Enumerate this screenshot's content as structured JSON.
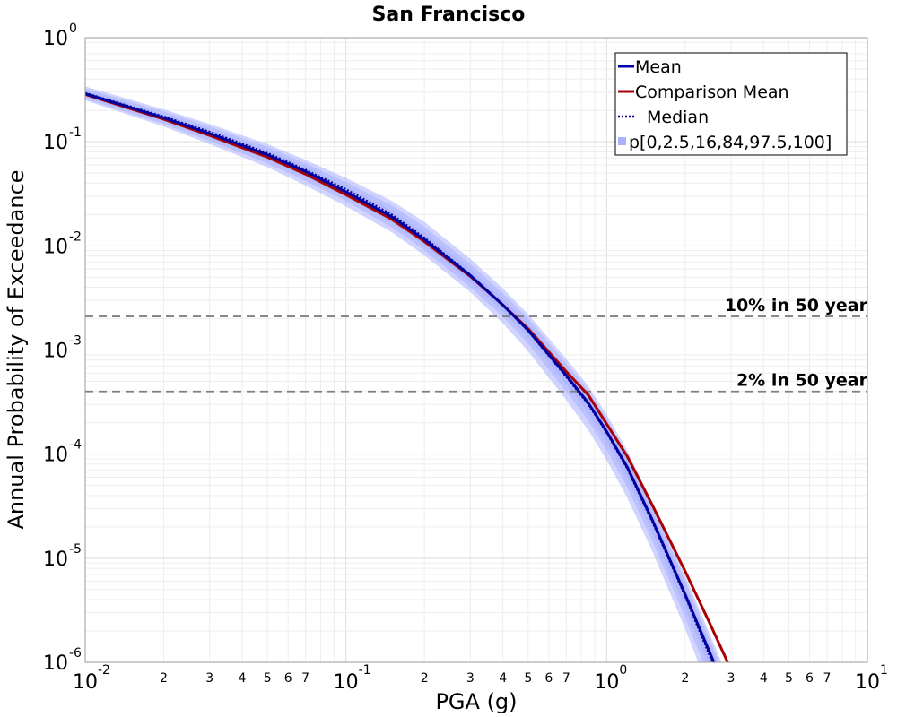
{
  "chart_data": {
    "type": "line",
    "title": "San Francisco",
    "xlabel": "PGA (g)",
    "ylabel": "Annual Probability of Exceedance",
    "x_scale": "log",
    "y_scale": "log",
    "xlim": [
      0.01,
      10
    ],
    "ylim": [
      1e-06,
      1
    ],
    "grid": true,
    "legend_position": "top-right",
    "x_ticks": {
      "major": [
        {
          "value": 0.01,
          "base": "10",
          "exp": "-2"
        },
        {
          "value": 0.1,
          "base": "10",
          "exp": "-1"
        },
        {
          "value": 1,
          "base": "10",
          "exp": "0"
        },
        {
          "value": 10,
          "base": "10",
          "exp": "1"
        }
      ],
      "minor_labels": [
        "2",
        "3",
        "4",
        "5",
        "6",
        "7"
      ]
    },
    "y_ticks": {
      "major": [
        {
          "value": 1,
          "base": "10",
          "exp": "0"
        },
        {
          "value": 0.1,
          "base": "10",
          "exp": "-1"
        },
        {
          "value": 0.01,
          "base": "10",
          "exp": "-2"
        },
        {
          "value": 0.001,
          "base": "10",
          "exp": "-3"
        },
        {
          "value": 0.0001,
          "base": "10",
          "exp": "-4"
        },
        {
          "value": 1e-05,
          "base": "10",
          "exp": "-5"
        },
        {
          "value": 1e-06,
          "base": "10",
          "exp": "-6"
        }
      ]
    },
    "x": [
      0.01,
      0.02,
      0.03,
      0.05,
      0.07,
      0.1,
      0.15,
      0.2,
      0.3,
      0.4,
      0.5,
      0.7,
      0.85,
      1.0,
      1.2,
      1.5,
      2.0,
      2.5,
      3.0
    ],
    "series": [
      {
        "name": "Mean",
        "color": "#0000aa",
        "style": "solid",
        "values": [
          0.29,
          0.17,
          0.12,
          0.075,
          0.052,
          0.033,
          0.019,
          0.0115,
          0.0052,
          0.0027,
          0.00155,
          0.00057,
          0.00031,
          0.000165,
          7.5e-05,
          2.3e-05,
          4.5e-06,
          1.2e-06,
          4e-07
        ]
      },
      {
        "name": "Comparison Mean",
        "color": "#aa0000",
        "style": "solid",
        "values": [
          0.285,
          0.165,
          0.115,
          0.071,
          0.049,
          0.031,
          0.018,
          0.011,
          0.0051,
          0.0027,
          0.0016,
          0.00062,
          0.00037,
          0.000195,
          9.5e-05,
          3.2e-05,
          7.5e-06,
          2.3e-06,
          8.5e-07
        ]
      },
      {
        "name": "Median",
        "color": "#000088",
        "style": "dotted",
        "values": [
          0.295,
          0.175,
          0.125,
          0.078,
          0.054,
          0.035,
          0.02,
          0.012,
          0.0053,
          0.0027,
          0.00152,
          0.00055,
          0.0003,
          0.00016,
          7.2e-05,
          2.2e-05,
          4.3e-06,
          1.1e-06,
          3.7e-07
        ]
      }
    ],
    "band": {
      "name": "p[0,2.5,16,84,97.5,100]",
      "color": "#aab0ff",
      "levels": [
        {
          "lower": [
            0.25,
            0.14,
            0.095,
            0.057,
            0.038,
            0.024,
            0.0135,
            0.0081,
            0.0036,
            0.0018,
            0.00097,
            0.00033,
            0.00017,
            8.8e-05,
            3.8e-05,
            1.15e-05,
            2.1e-06,
            5e-07,
            1.6e-07
          ],
          "upper": [
            0.34,
            0.205,
            0.148,
            0.095,
            0.067,
            0.045,
            0.027,
            0.017,
            0.0075,
            0.0039,
            0.0022,
            0.00082,
            0.00045,
            0.00024,
            0.000108,
            3.4e-05,
            6.8e-06,
            1.8e-06,
            6e-07
          ]
        },
        {
          "lower": [
            0.26,
            0.148,
            0.102,
            0.062,
            0.042,
            0.027,
            0.015,
            0.0091,
            0.004,
            0.0021,
            0.00115,
            0.0004,
            0.00021,
            0.00011,
            4.8e-05,
            1.45e-05,
            2.7e-06,
            6.8e-07,
            2.2e-07
          ],
          "upper": [
            0.325,
            0.195,
            0.14,
            0.089,
            0.062,
            0.041,
            0.0245,
            0.0152,
            0.0067,
            0.0035,
            0.002,
            0.00074,
            0.00041,
            0.00022,
            9.8e-05,
            3.1e-05,
            6.1e-06,
            1.6e-06,
            5.3e-07
          ]
        },
        {
          "lower": [
            0.273,
            0.158,
            0.11,
            0.067,
            0.046,
            0.0295,
            0.0167,
            0.0101,
            0.0045,
            0.00235,
            0.00132,
            0.00047,
            0.00025,
            0.000132,
            5.8e-05,
            1.75e-05,
            3.3e-06,
            8.5e-07,
            2.8e-07
          ],
          "upper": [
            0.31,
            0.183,
            0.131,
            0.083,
            0.058,
            0.0375,
            0.022,
            0.0134,
            0.006,
            0.0031,
            0.00178,
            0.00066,
            0.00036,
            0.000193,
            8.7e-05,
            2.7e-05,
            5.3e-06,
            1.4e-06,
            4.7e-07
          ]
        }
      ]
    },
    "reference_lines": [
      {
        "label": "10% in 50 year",
        "y": 0.0021
      },
      {
        "label": "2% in 50 year",
        "y": 0.0004
      }
    ]
  }
}
